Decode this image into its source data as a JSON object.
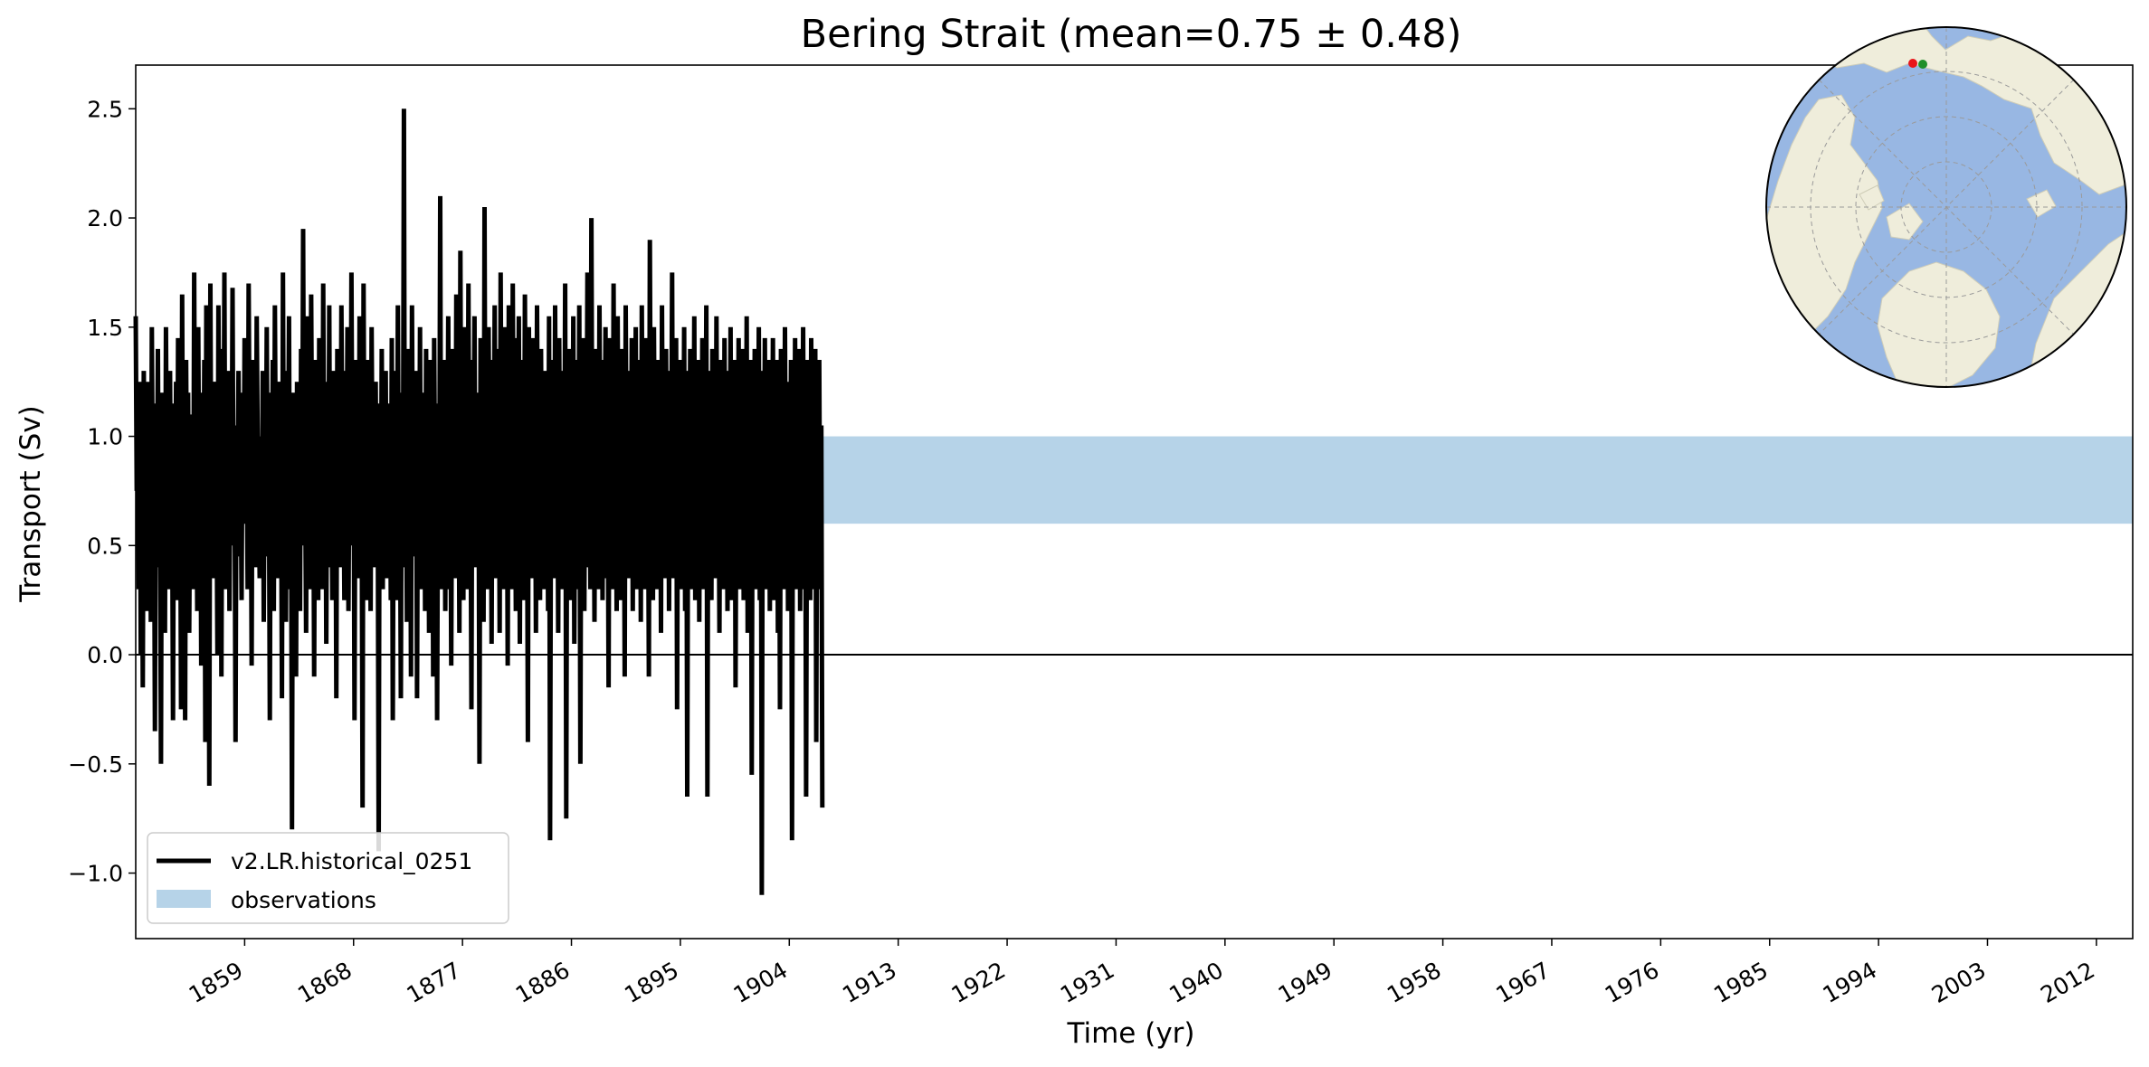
{
  "chart_data": {
    "type": "line",
    "title": "Bering Strait (mean=0.75 ± 0.48)",
    "xlabel": "Time (yr)",
    "ylabel": "Transport (Sv)",
    "xlim": [
      1850,
      2015
    ],
    "ylim": [
      -1.3,
      2.7
    ],
    "x_ticks": [
      1859,
      1868,
      1877,
      1886,
      1895,
      1904,
      1913,
      1922,
      1931,
      1940,
      1949,
      1958,
      1967,
      1976,
      1985,
      1994,
      2003,
      2012
    ],
    "y_ticks": [
      -1.0,
      -0.5,
      0.0,
      0.5,
      1.0,
      1.5,
      2.0,
      2.5
    ],
    "y_tick_labels": [
      "−1.0",
      "−0.5",
      "0.0",
      "0.5",
      "1.0",
      "1.5",
      "2.0",
      "2.5"
    ],
    "zero_line": 0.0,
    "legend_position": "lower-left",
    "grid": false,
    "series": [
      {
        "name": "v2.LR.historical_0251",
        "color": "#000000",
        "style": "line",
        "x_start": 1850.0,
        "x_step": 0.0833,
        "values": [
          1.55,
          0.75,
          1.1,
          0.3,
          1.25,
          0.0,
          0.95,
          -0.15,
          1.3,
          0.6,
          1.05,
          0.2,
          1.25,
          0.55,
          0.9,
          0.15,
          1.5,
          0.65,
          1.0,
          -0.35,
          1.15,
          0.55,
          1.4,
          0.4,
          0.8,
          -0.5,
          1.2,
          0.5,
          1.05,
          0.1,
          1.5,
          0.7,
          0.95,
          0.3,
          1.3,
          0.6,
          0.85,
          -0.3,
          1.15,
          0.55,
          1.25,
          0.25,
          1.45,
          0.5,
          0.95,
          -0.25,
          1.65,
          0.4,
          1.0,
          -0.3,
          1.35,
          0.55,
          1.2,
          0.1,
          0.85,
          0.45,
          1.1,
          0.3,
          1.75,
          0.6,
          0.9,
          0.2,
          1.5,
          0.65,
          1.05,
          -0.05,
          1.2,
          0.5,
          1.35,
          -0.4,
          1.6,
          0.7,
          0.95,
          -0.6,
          1.7,
          0.55,
          1.1,
          0.35,
          1.25,
          0.6,
          0.9,
          0.0,
          1.6,
          0.7,
          1.15,
          -0.1,
          1.4,
          0.55,
          1.75,
          0.3,
          0.95,
          0.6,
          1.3,
          0.2,
          1.15,
          0.5,
          1.68,
          0.55,
          0.9,
          -0.4,
          1.05,
          0.7,
          1.3,
          0.45,
          0.85,
          0.25,
          1.2,
          0.6,
          1.45,
          0.75,
          1.0,
          0.3,
          1.7,
          0.85,
          1.1,
          -0.05,
          1.35,
          0.55,
          1.25,
          0.4,
          1.55,
          0.95,
          0.75,
          0.35,
          1.0,
          0.55,
          1.3,
          0.15,
          1.1,
          0.65,
          1.5,
          0.45,
          0.95,
          -0.3,
          1.2,
          0.6,
          1.35,
          0.2,
          1.6,
          0.75,
          0.9,
          0.35,
          1.25,
          0.5,
          1.05,
          -0.2,
          1.75,
          0.6,
          0.95,
          0.15,
          1.3,
          0.7,
          1.55,
          0.3,
          0.85,
          -0.8,
          1.2,
          0.35,
          1.05,
          -0.1,
          1.25,
          0.65,
          0.9,
          0.2,
          1.4,
          0.5,
          1.95,
          0.6,
          0.85,
          0.1,
          1.55,
          0.45,
          1.2,
          0.3,
          1.65,
          0.75,
          1.05,
          -0.1,
          1.35,
          0.6,
          1.25,
          0.25,
          1.45,
          0.55,
          0.9,
          0.3,
          1.7,
          0.65,
          1.15,
          0.05,
          1.25,
          0.5,
          1.6,
          0.4,
          0.95,
          0.25,
          1.3,
          0.7,
          1.05,
          -0.2,
          1.4,
          0.65,
          1.2,
          0.4,
          1.6,
          0.85,
          0.95,
          0.25,
          1.3,
          0.55,
          1.5,
          0.2,
          1.0,
          0.5,
          1.75,
          0.6,
          1.1,
          -0.3,
          1.35,
          0.7,
          1.25,
          0.35,
          1.55,
          0.6,
          0.9,
          -0.7,
          1.7,
          0.5,
          1.15,
          0.25,
          1.35,
          0.65,
          1.1,
          0.2,
          1.5,
          0.7,
          0.95,
          0.4,
          1.25,
          0.6,
          0.85,
          -0.9,
          1.15,
          0.45,
          1.4,
          0.3,
          1.05,
          0.55,
          1.3,
          0.35,
          0.95,
          0.5,
          1.15,
          0.25,
          1.45,
          -0.3,
          1.1,
          0.65,
          1.3,
          0.25,
          1.6,
          0.55,
          0.9,
          -0.2,
          1.2,
          0.6,
          2.5,
          0.4,
          1.05,
          0.15,
          1.4,
          0.55,
          1.25,
          -0.1,
          1.6,
          0.65,
          0.95,
          0.45,
          1.3,
          -0.2,
          1.15,
          0.5,
          1.5,
          0.3,
          0.95,
          0.55,
          1.2,
          0.2,
          1.4,
          0.6,
          1.05,
          0.1,
          1.35,
          0.45,
          1.25,
          -0.1,
          1.45,
          0.7,
          0.9,
          -0.3,
          1.15,
          0.5,
          2.1,
          0.3,
          1.05,
          0.5,
          1.35,
          0.2,
          1.2,
          0.65,
          1.55,
          0.3,
          0.95,
          -0.05,
          1.4,
          0.6,
          1.1,
          0.35,
          1.65,
          0.7,
          1.3,
          0.1,
          1.85,
          0.55,
          1.0,
          0.25,
          1.5,
          0.65,
          1.2,
          0.3,
          1.7,
          0.5,
          0.95,
          -0.25,
          1.35,
          0.75,
          1.55,
          0.4,
          1.2,
          0.6,
          1.05,
          -0.5,
          1.45,
          0.65,
          1.3,
          0.15,
          2.05,
          0.45,
          1.1,
          0.3,
          1.5,
          0.7,
          1.25,
          0.05,
          1.35,
          0.6,
          1.6,
          0.35,
          1.15,
          0.55,
          1.4,
          0.1,
          1.75,
          0.6,
          1.05,
          0.3,
          1.5,
          0.75,
          1.25,
          -0.05,
          1.6,
          0.55,
          1.3,
          0.3,
          1.7,
          0.65,
          1.1,
          0.2,
          1.45,
          0.6,
          1.55,
          0.05,
          1.25,
          0.55,
          1.35,
          0.25,
          1.65,
          0.7,
          1.0,
          -0.4,
          1.5,
          0.6,
          1.2,
          0.35,
          1.45,
          0.5,
          1.05,
          0.1,
          1.6,
          0.75,
          1.15,
          0.25,
          1.4,
          0.6,
          0.95,
          0.3,
          1.3,
          0.55,
          1.25,
          0.2,
          1.55,
          -0.85,
          1.1,
          0.5,
          1.35,
          0.35,
          1.6,
          0.55,
          1.2,
          0.1,
          1.45,
          0.6,
          1.05,
          0.3,
          1.3,
          0.5,
          1.7,
          -0.75,
          1.15,
          0.6,
          1.4,
          0.25,
          1.25,
          0.5,
          1.55,
          0.05,
          1.05,
          0.55,
          1.35,
          0.3,
          1.6,
          -0.5,
          1.2,
          0.6,
          1.45,
          0.2,
          1.3,
          0.55,
          1.75,
          0.4,
          1.1,
          0.3,
          2.0,
          0.6,
          1.25,
          0.15,
          1.4,
          0.55,
          1.05,
          0.3,
          1.6,
          0.7,
          1.35,
          0.25,
          1.2,
          0.65,
          1.5,
          0.35,
          1.15,
          -0.15,
          1.45,
          0.6,
          1.3,
          0.3,
          1.7,
          0.55,
          1.0,
          0.2,
          1.55,
          0.65,
          1.2,
          0.25,
          1.4,
          0.5,
          1.1,
          -0.1,
          1.6,
          0.7,
          1.3,
          0.35,
          1.15,
          0.6,
          1.45,
          0.2,
          1.25,
          0.55,
          1.5,
          0.3,
          1.05,
          0.55,
          1.35,
          0.15,
          1.6,
          0.6,
          1.2,
          0.3,
          1.45,
          0.55,
          1.1,
          -0.1,
          1.9,
          0.6,
          1.3,
          0.25,
          1.5,
          0.7,
          1.15,
          0.3,
          1.35,
          0.55,
          1.25,
          0.1,
          1.6,
          0.6,
          1.05,
          0.35,
          1.4,
          0.5,
          1.2,
          0.2,
          1.3,
          0.65,
          1.75,
          0.35,
          1.1,
          0.55,
          1.45,
          -0.25,
          1.25,
          0.6,
          1.35,
          0.3,
          1.15,
          0.55,
          1.5,
          0.2,
          1.3,
          -0.65,
          1.05,
          0.55,
          1.4,
          0.3,
          1.2,
          0.6,
          1.55,
          0.25,
          1.1,
          0.5,
          1.35,
          0.15,
          1.25,
          0.6,
          1.45,
          0.3,
          1.0,
          0.55,
          1.6,
          -0.65,
          1.3,
          0.55,
          1.15,
          0.25,
          1.4,
          0.6,
          1.2,
          0.35,
          1.55,
          0.5,
          1.05,
          0.1,
          1.35,
          0.6,
          1.25,
          0.3,
          1.45,
          0.55,
          1.1,
          0.2,
          1.3,
          0.5,
          1.5,
          0.25,
          1.15,
          0.6,
          1.35,
          -0.15,
          1.2,
          0.55,
          1.45,
          0.3,
          1.05,
          0.6,
          1.4,
          0.25,
          1.3,
          0.5,
          1.55,
          0.1,
          1.15,
          0.55,
          1.35,
          -0.55,
          1.25,
          0.6,
          1.4,
          0.3,
          1.1,
          0.55,
          1.5,
          0.25,
          1.3,
          -1.1,
          1.2,
          0.55,
          1.45,
          0.3,
          1.15,
          0.6,
          1.35,
          0.2,
          1.25,
          0.55,
          1.45,
          0.25,
          1.1,
          0.5,
          1.35,
          0.1,
          1.2,
          -0.25,
          1.4,
          0.55,
          1.15,
          0.3,
          1.5,
          0.5,
          1.25,
          0.2,
          1.05,
          0.6,
          1.35,
          -0.85,
          1.25,
          0.55,
          1.45,
          0.3,
          1.1,
          0.6,
          1.4,
          0.2,
          1.2,
          0.55,
          1.5,
          0.3,
          1.15,
          -0.65,
          1.35,
          0.55,
          1.25,
          0.25,
          1.45,
          0.6,
          1.1,
          0.3,
          1.4,
          -0.4,
          1.2,
          0.55,
          1.35,
          0.3,
          1.05,
          -0.7
        ]
      },
      {
        "name": "observations",
        "color": "#b6d3e8",
        "style": "band",
        "low": 0.6,
        "high": 1.0
      }
    ]
  },
  "inset_map": {
    "land_color": "#efeddb",
    "ocean_color": "#98b7e3",
    "section_colors": [
      "#e8141a",
      "#1f8f2a"
    ]
  }
}
